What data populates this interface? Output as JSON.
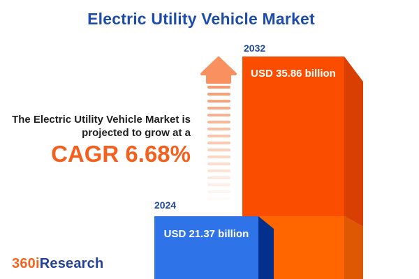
{
  "title": "Electric Utility Vehicle Market",
  "headline": {
    "line1": "The Electric Utility Vehicle Market is",
    "line2": "projected to grow at a",
    "cagr": "CAGR 6.68%"
  },
  "bars": [
    {
      "year": "2024",
      "value_label": "USD 21.37 billion"
    },
    {
      "year": "2032",
      "value_label": "USD 35.86 billion"
    }
  ],
  "logo": {
    "part1": "360i",
    "part2": "Research"
  },
  "colors": {
    "title_blue": "#1E4CA9",
    "accent_orange": "#F4611E",
    "year_label_blue": "#2349A5",
    "bar2032_front": "#FB4D00",
    "bar2032_side": "#D93F02",
    "bar2032_base_front": "#FF6600",
    "bar2032_base_side": "#DE5703",
    "bar2024_front": "#2E74E8",
    "bar2024_side": "#03308A",
    "arrow_orange": "#F9905F",
    "text_dark": "#1E1E1E",
    "value_text": "#FFFFFF"
  },
  "chart_data": {
    "type": "bar",
    "categories": [
      "2024",
      "2032"
    ],
    "values": [
      21.37,
      35.86
    ],
    "unit": "USD billion",
    "value_labels": [
      "USD 21.37 billion",
      "USD 35.86 billion"
    ],
    "title": "Electric Utility Vehicle Market",
    "cagr_percent": 6.68,
    "annotation": "The Electric Utility Vehicle Market is projected to grow at a CAGR 6.68%",
    "xlabel": "",
    "ylabel": "",
    "legend": "none",
    "grid": false,
    "style": "3d-infographic-bars"
  }
}
